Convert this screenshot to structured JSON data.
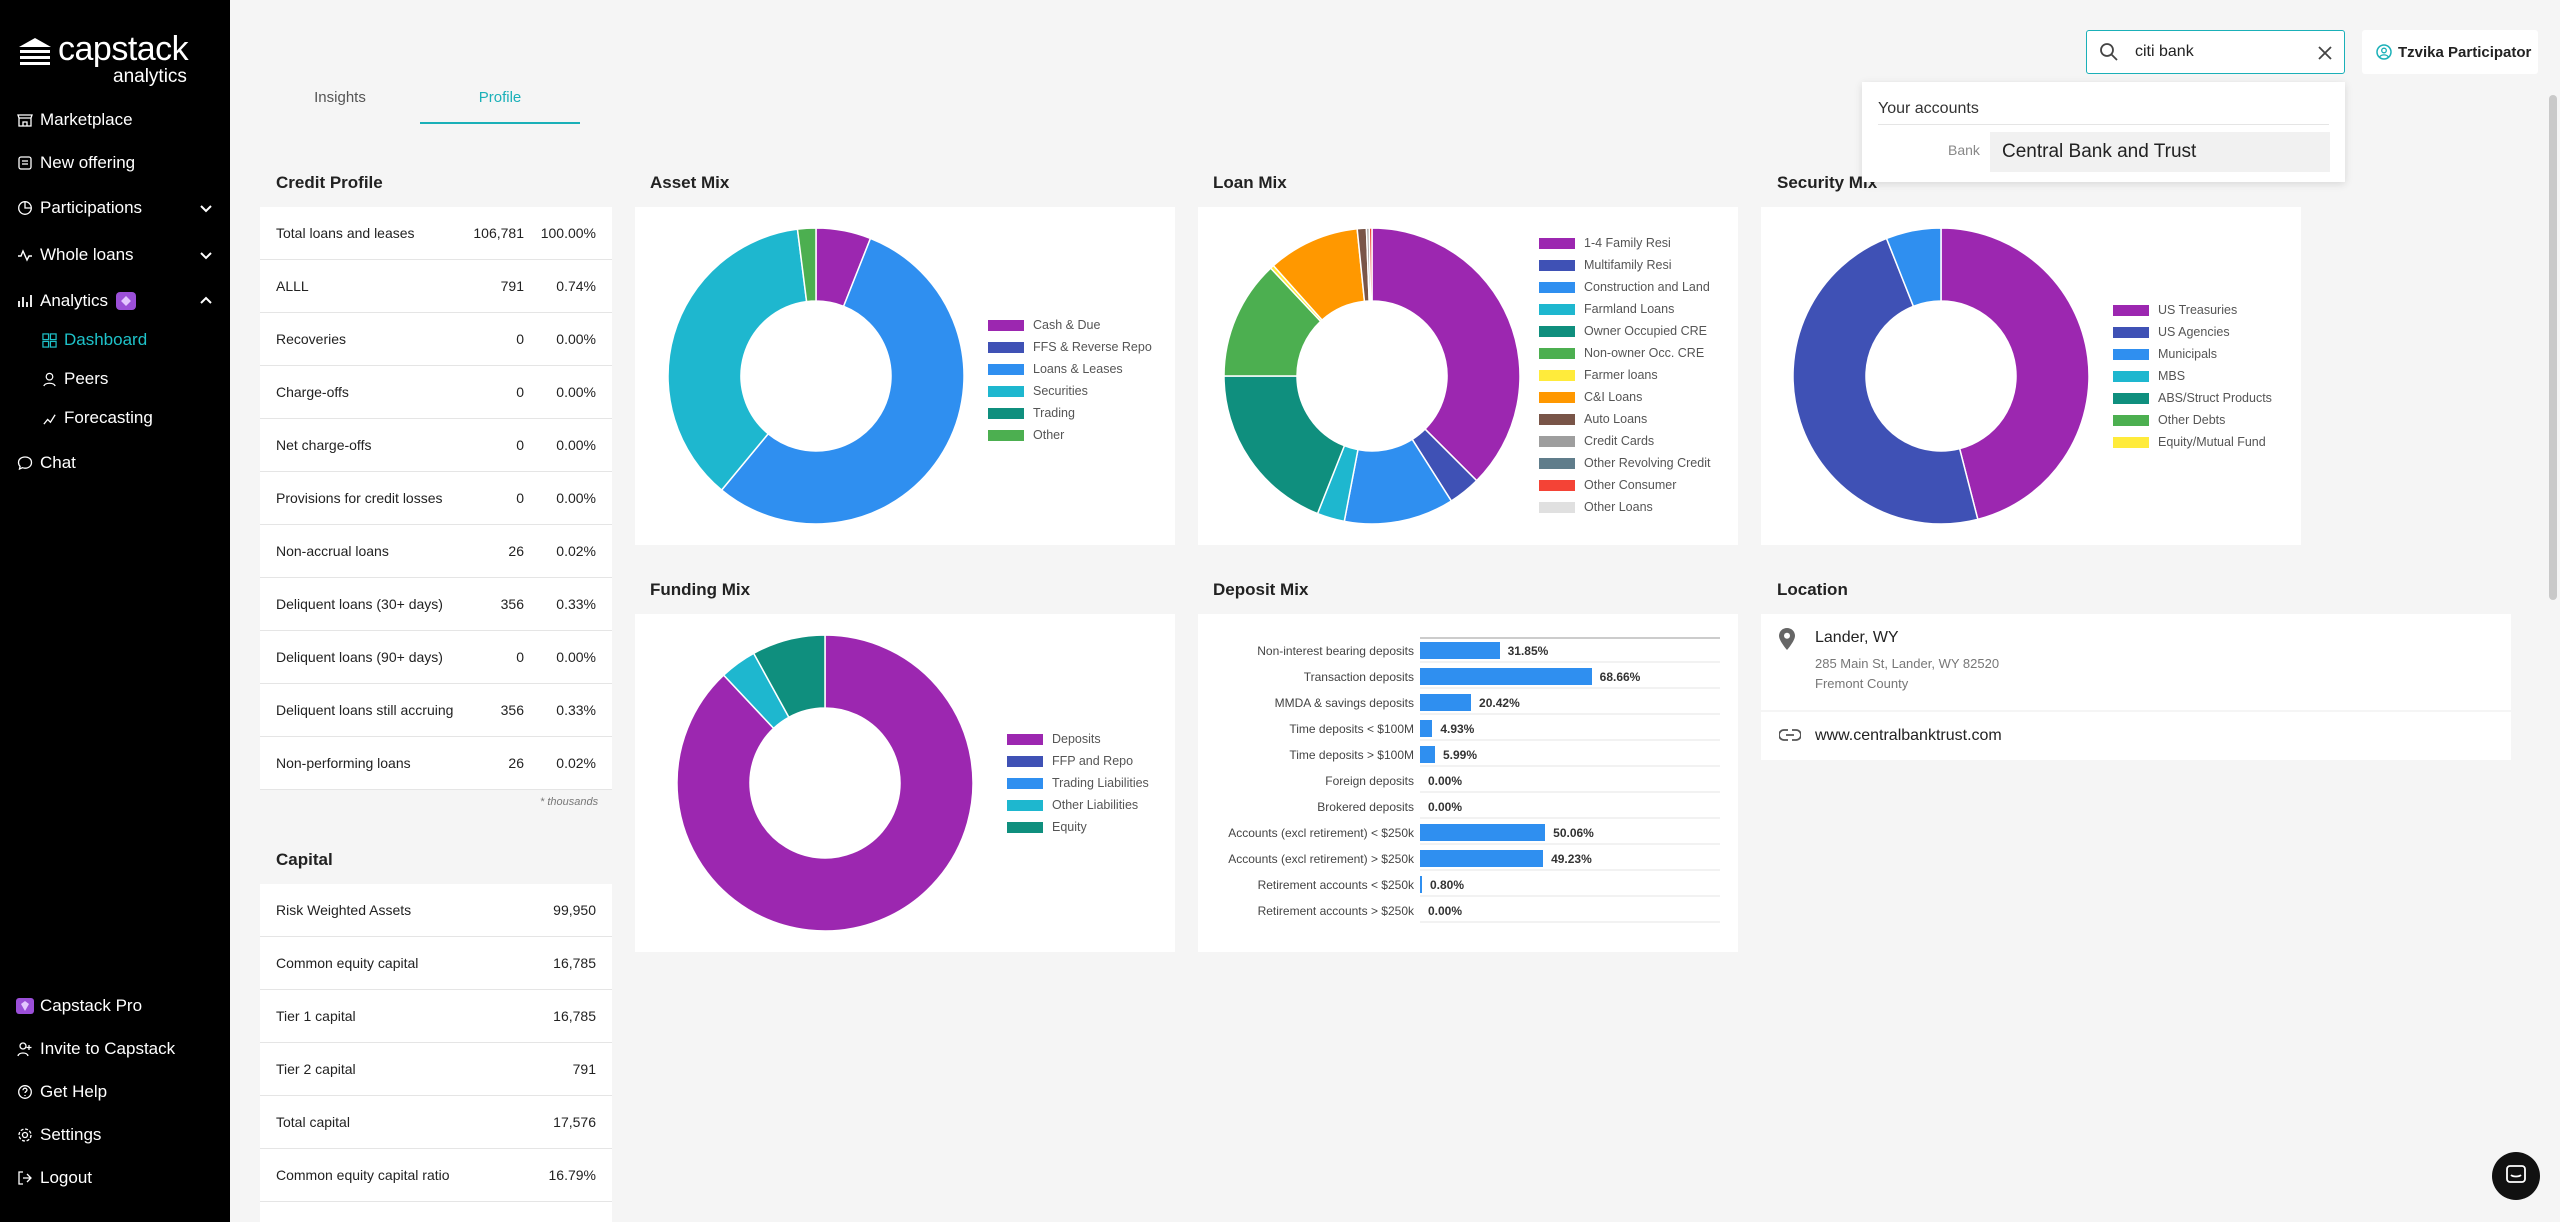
{
  "brand": {
    "name": "capstack",
    "sub": "analytics"
  },
  "sidebar": {
    "items": [
      {
        "label": "Marketplace"
      },
      {
        "label": "New offering"
      },
      {
        "label": "Participations"
      },
      {
        "label": "Whole loans"
      },
      {
        "label": "Analytics"
      }
    ],
    "analytics_sub": [
      {
        "label": "Dashboard"
      },
      {
        "label": "Peers"
      },
      {
        "label": "Forecasting"
      }
    ],
    "chat": "Chat",
    "bottom": [
      {
        "label": "Capstack Pro"
      },
      {
        "label": "Invite to Capstack"
      },
      {
        "label": "Get Help"
      },
      {
        "label": "Settings"
      },
      {
        "label": "Logout"
      }
    ]
  },
  "tabs": [
    {
      "label": "Insights"
    },
    {
      "label": "Profile"
    }
  ],
  "search": {
    "value": "citi bank"
  },
  "user": {
    "name": "Tzvika Participator"
  },
  "dropdown": {
    "title": "Your accounts",
    "type": "Bank",
    "option": "Central Bank and Trust"
  },
  "credit_profile": {
    "title": "Credit Profile",
    "rows": [
      {
        "label": "Total loans and leases",
        "value": "106,781",
        "pct": "100.00%"
      },
      {
        "label": "ALLL",
        "value": "791",
        "pct": "0.74%"
      },
      {
        "label": "Recoveries",
        "value": "0",
        "pct": "0.00%"
      },
      {
        "label": "Charge-offs",
        "value": "0",
        "pct": "0.00%"
      },
      {
        "label": "Net charge-offs",
        "value": "0",
        "pct": "0.00%"
      },
      {
        "label": "Provisions for credit losses",
        "value": "0",
        "pct": "0.00%"
      },
      {
        "label": "Non-accrual loans",
        "value": "26",
        "pct": "0.02%"
      },
      {
        "label": "Deliquent loans (30+ days)",
        "value": "356",
        "pct": "0.33%"
      },
      {
        "label": "Deliquent loans (90+ days)",
        "value": "0",
        "pct": "0.00%"
      },
      {
        "label": "Deliquent loans still accruing",
        "value": "356",
        "pct": "0.33%"
      },
      {
        "label": "Non-performing loans",
        "value": "26",
        "pct": "0.02%"
      }
    ],
    "footnote": "* thousands"
  },
  "capital": {
    "title": "Capital",
    "rows": [
      {
        "label": "Risk Weighted Assets",
        "value": "99,950"
      },
      {
        "label": "Common equity capital",
        "value": "16,785"
      },
      {
        "label": "Tier 1 capital",
        "value": "16,785"
      },
      {
        "label": "Tier 2 capital",
        "value": "791"
      },
      {
        "label": "Total capital",
        "value": "17,576"
      },
      {
        "label": "Common equity capital ratio",
        "value": "16.79%"
      }
    ]
  },
  "location": {
    "title": "Location",
    "city": "Lander, WY",
    "address": "285 Main St, Lander, WY 82520",
    "county": "Fremont County",
    "url": "www.centralbanktrust.com"
  },
  "chart_data": [
    {
      "type": "pie",
      "title": "Asset Mix",
      "series": [
        {
          "name": "Cash & Due",
          "value": 6,
          "color": "#9c27b0"
        },
        {
          "name": "FFS & Reverse Repo",
          "value": 0,
          "color": "#3f51b5"
        },
        {
          "name": "Loans & Leases",
          "value": 55,
          "color": "#2f8ff0"
        },
        {
          "name": "Securities",
          "value": 37,
          "color": "#1eb7cf"
        },
        {
          "name": "Trading",
          "value": 0,
          "color": "#0f8f7e"
        },
        {
          "name": "Other",
          "value": 2,
          "color": "#4caf50"
        }
      ]
    },
    {
      "type": "pie",
      "title": "Loan Mix",
      "series": [
        {
          "name": "1-4 Family Resi",
          "value": 37.5,
          "color": "#9c27b0"
        },
        {
          "name": "Multifamily Resi",
          "value": 3.5,
          "color": "#3f51b5"
        },
        {
          "name": "Construction and Land",
          "value": 12,
          "color": "#2f8ff0"
        },
        {
          "name": "Farmland Loans",
          "value": 3,
          "color": "#1eb7cf"
        },
        {
          "name": "Owner Occupied CRE",
          "value": 19,
          "color": "#0f8f7e"
        },
        {
          "name": "Non-owner Occ. CRE",
          "value": 13,
          "color": "#4caf50"
        },
        {
          "name": "Farmer loans",
          "value": 0.4,
          "color": "#ffeb3b"
        },
        {
          "name": "C&I Loans",
          "value": 10,
          "color": "#ff9800"
        },
        {
          "name": "Auto Loans",
          "value": 1,
          "color": "#795548"
        },
        {
          "name": "Credit Cards",
          "value": 0.3,
          "color": "#9e9e9e"
        },
        {
          "name": "Other Revolving Credit",
          "value": 0,
          "color": "#607d8b"
        },
        {
          "name": "Other Consumer",
          "value": 0.3,
          "color": "#f44336"
        },
        {
          "name": "Other Loans",
          "value": 0,
          "color": "#e0e0e0"
        }
      ]
    },
    {
      "type": "pie",
      "title": "Security Mix",
      "series": [
        {
          "name": "US Treasuries",
          "value": 46,
          "color": "#9c27b0"
        },
        {
          "name": "US Agencies",
          "value": 48,
          "color": "#3f51b5"
        },
        {
          "name": "Municipals",
          "value": 6,
          "color": "#2f8ff0"
        },
        {
          "name": "MBS",
          "value": 0,
          "color": "#1eb7cf"
        },
        {
          "name": "ABS/Struct Products",
          "value": 0,
          "color": "#0f8f7e"
        },
        {
          "name": "Other Debts",
          "value": 0,
          "color": "#4caf50"
        },
        {
          "name": "Equity/Mutual Fund",
          "value": 0,
          "color": "#ffeb3b"
        }
      ]
    },
    {
      "type": "pie",
      "title": "Funding Mix",
      "series": [
        {
          "name": "Deposits",
          "value": 88,
          "color": "#9c27b0"
        },
        {
          "name": "FFP and Repo",
          "value": 0,
          "color": "#3f51b5"
        },
        {
          "name": "Trading Liabilities",
          "value": 0,
          "color": "#2f8ff0"
        },
        {
          "name": "Other Liabilities",
          "value": 4,
          "color": "#1eb7cf"
        },
        {
          "name": "Equity",
          "value": 8,
          "color": "#0f8f7e"
        }
      ]
    },
    {
      "type": "bar",
      "title": "Deposit Mix",
      "categories": [
        "Non-interest bearing deposits",
        "Transaction deposits",
        "MMDA & savings deposits",
        "Time deposits < $100M",
        "Time deposits > $100M",
        "Foreign deposits",
        "Brokered deposits",
        "Accounts (excl retirement) < $250k",
        "Accounts (excl retirement) > $250k",
        "Retirement accounts < $250k",
        "Retirement accounts > $250k"
      ],
      "values": [
        31.85,
        68.66,
        20.42,
        4.93,
        5.99,
        0.0,
        0.0,
        50.06,
        49.23,
        0.8,
        0.0
      ],
      "labels": [
        "31.85%",
        "68.66%",
        "20.42%",
        "4.93%",
        "5.99%",
        "0.00%",
        "0.00%",
        "50.06%",
        "49.23%",
        "0.80%",
        "0.00%"
      ],
      "xlim": [
        0,
        100
      ],
      "color": "#2f8ff0"
    }
  ]
}
